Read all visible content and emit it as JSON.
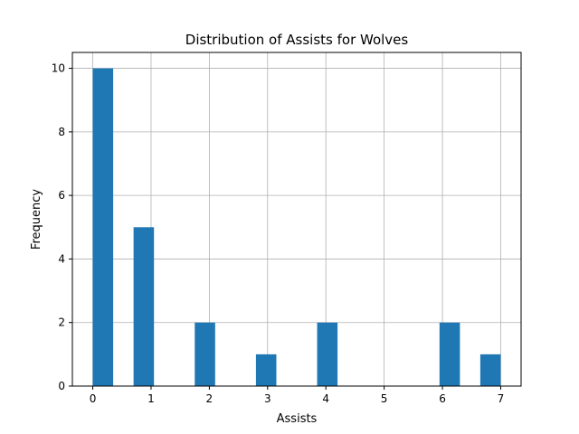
{
  "chart_data": {
    "type": "bar",
    "title": "Distribution of Assists for Wolves",
    "xlabel": "Assists",
    "ylabel": "Frequency",
    "xlim": [
      -0.35,
      7.35
    ],
    "ylim": [
      0,
      10.5
    ],
    "xticks": [
      0,
      1,
      2,
      3,
      4,
      5,
      6,
      7
    ],
    "yticks": [
      0,
      2,
      4,
      6,
      8,
      10
    ],
    "bin_width": 0.35,
    "bins": [
      {
        "left": 0.0,
        "value": 10
      },
      {
        "left": 0.7,
        "value": 5
      },
      {
        "left": 1.75,
        "value": 2
      },
      {
        "left": 2.8,
        "value": 1
      },
      {
        "left": 3.85,
        "value": 2
      },
      {
        "left": 5.95,
        "value": 2
      },
      {
        "left": 6.65,
        "value": 1
      }
    ],
    "grid": true,
    "bar_color": "#1f77b4",
    "grid_color": "#b0b0b0"
  }
}
